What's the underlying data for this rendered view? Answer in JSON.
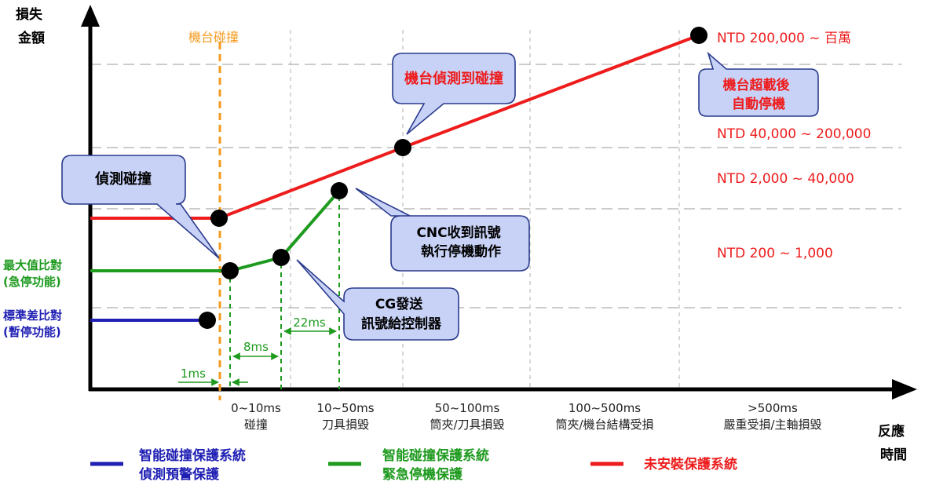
{
  "axes": {
    "y_label": [
      "損失",
      "金額"
    ],
    "x_label": [
      "反應",
      "時間"
    ]
  },
  "time_bands": [
    [
      "0~10ms",
      "碰撞"
    ],
    [
      "10~50ms",
      "刀具損毀"
    ],
    [
      "50~100ms",
      "筒夾/刀具損毀"
    ],
    [
      "100~500ms",
      "筒夾/機台結構受損"
    ],
    [
      ">500ms",
      "嚴重受損/主軸損毀"
    ]
  ],
  "cost_tiers": [
    "NTD 200,000 ~ 百萬",
    "NTD 40,000 ~ 200,000",
    "NTD 2,000 ~ 40,000",
    "NTD 200 ~ 1,000"
  ],
  "collision_marker": "機台碰撞",
  "side_labels": {
    "green": [
      "最大值比對",
      "(急停功能)"
    ],
    "blue": [
      "標準差比對",
      "(暫停功能)"
    ]
  },
  "callouts": {
    "detect": "偵測碰撞",
    "machine_detect": "機台偵測到碰撞",
    "overload": [
      "機台超載後",
      "自動停機"
    ],
    "cnc": [
      "CNC收到訊號",
      "執行停機動作"
    ],
    "cg": [
      "CG發送",
      "訊號給控制器"
    ]
  },
  "intervals": [
    "1ms",
    "8ms",
    "22ms"
  ],
  "legend": [
    {
      "color": "#1f1fb4",
      "lines": [
        "智能碰撞保護系統",
        "偵測預警保護"
      ]
    },
    {
      "color": "#1e9a1e",
      "lines": [
        "智能碰撞保護系統",
        "緊急停機保護"
      ]
    },
    {
      "color": "#ee1c1c",
      "lines": [
        "未安裝保護系統"
      ]
    }
  ],
  "colors": {
    "red": "#ee1c1c",
    "green": "#1e9a1e",
    "blue": "#1f1fb4",
    "orange": "#f39a1e",
    "callout_fill": "#c8d2f7",
    "callout_stroke": "#2a3a8c"
  }
}
